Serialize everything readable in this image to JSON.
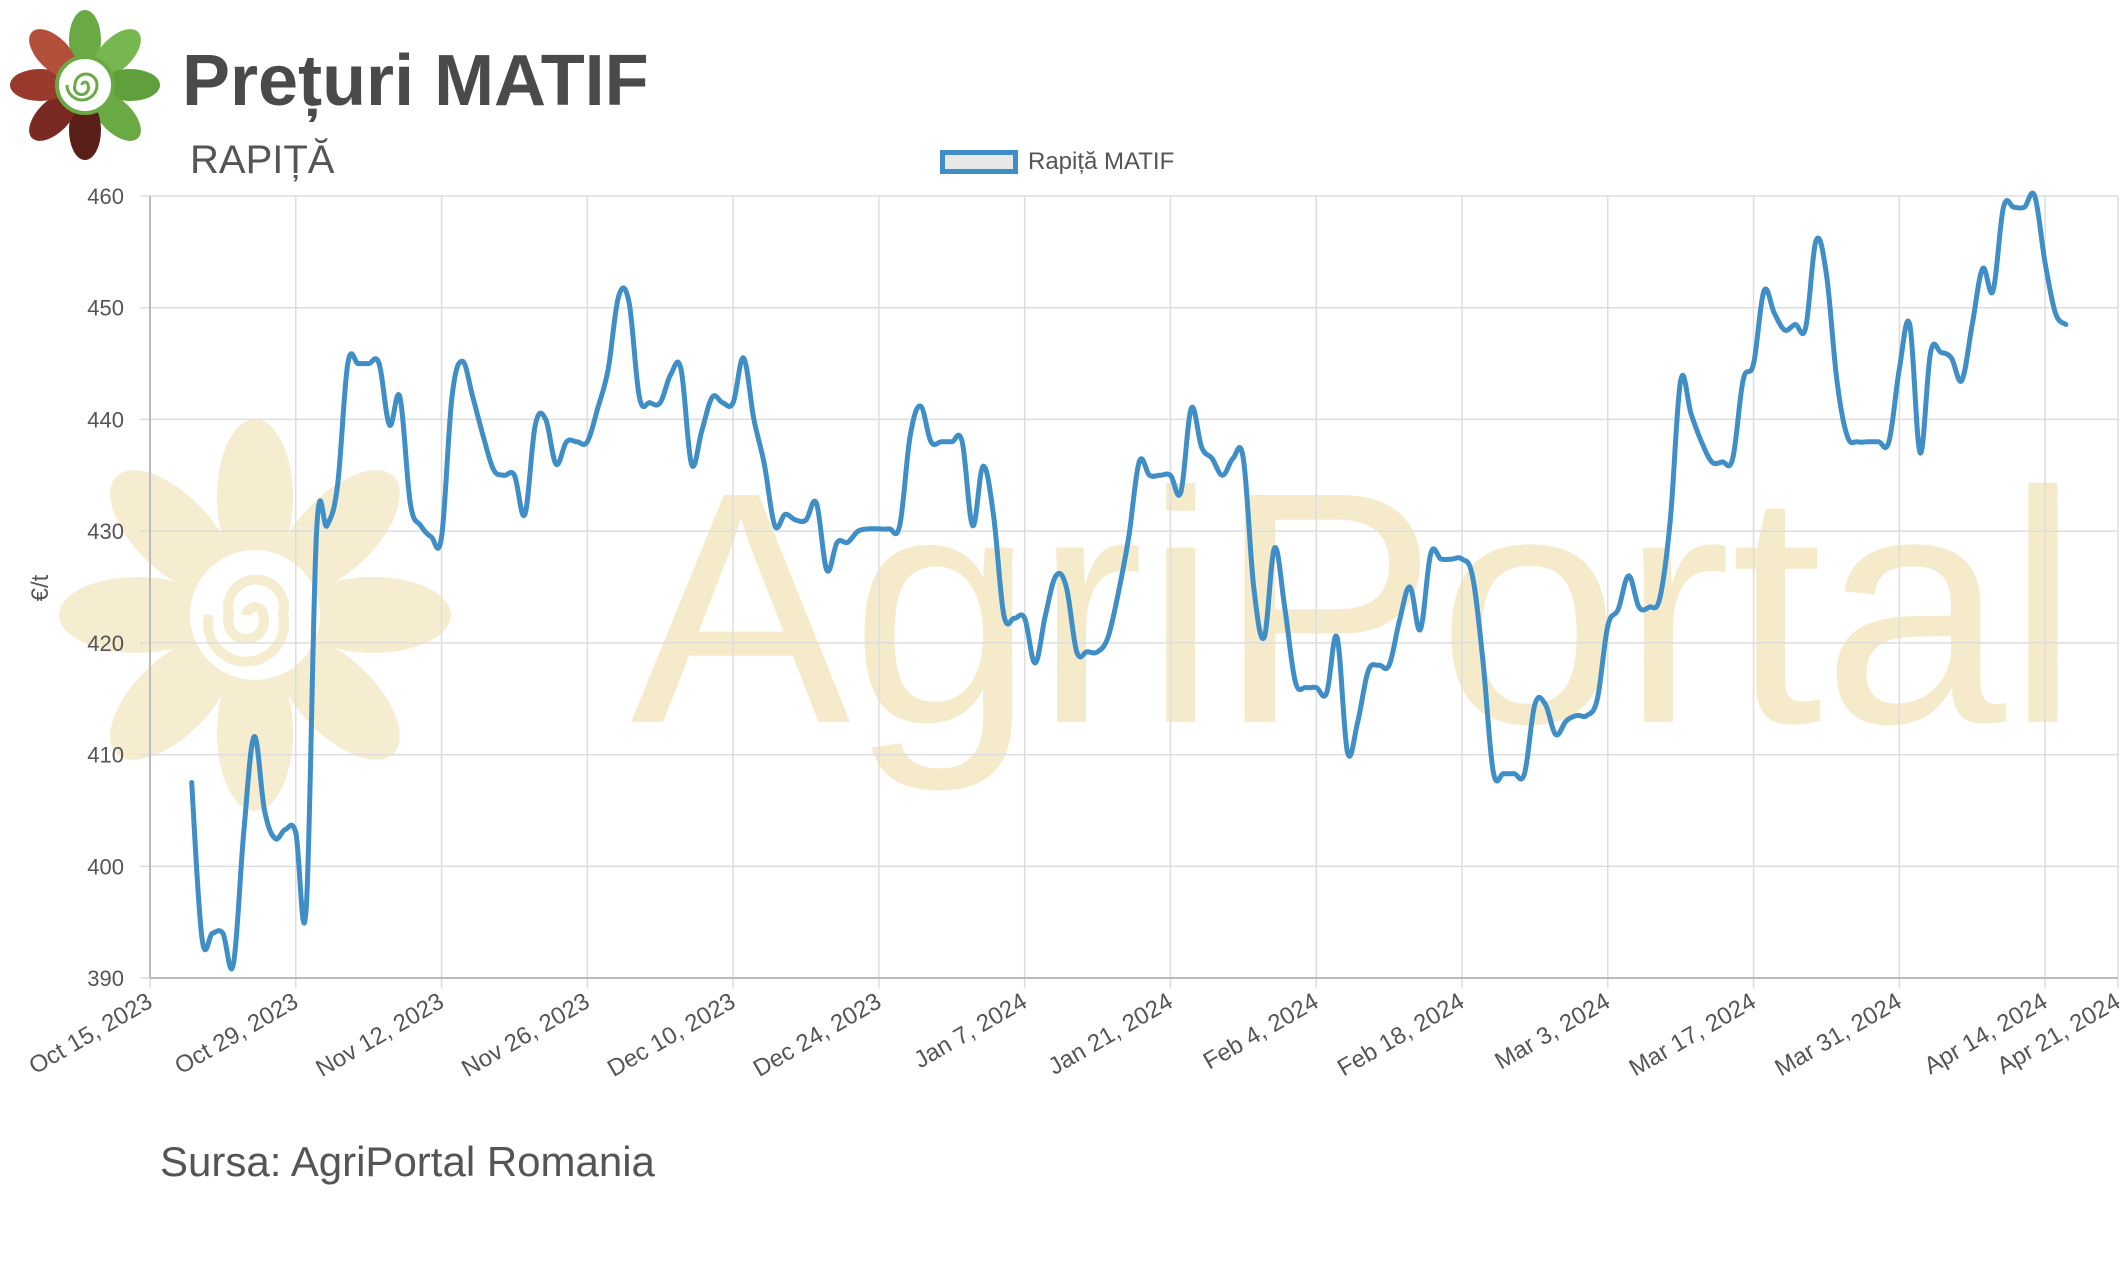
{
  "header": {
    "title": "Prețuri MATIF",
    "subtitle": "RAPIȚĂ"
  },
  "footer": {
    "source": "Sursa: AgriPortal Romania"
  },
  "watermark": {
    "text": "AgriPortal"
  },
  "colors": {
    "series": "#3f8ec6",
    "watermark": "#f3e6bf",
    "grid": "#dddddd"
  },
  "chart_data": {
    "type": "line",
    "title": "",
    "subtitle": "RAPIȚĂ",
    "xlabel": "",
    "ylabel": "€/t",
    "ylim": [
      390,
      460
    ],
    "xlim": [
      "2023-10-15",
      "2024-04-21"
    ],
    "yticks": [
      390,
      400,
      410,
      420,
      430,
      440,
      450,
      460
    ],
    "xticks": [
      "Oct 15, 2023",
      "Oct 29, 2023",
      "Nov 12, 2023",
      "Nov 26, 2023",
      "Dec 10, 2023",
      "Dec 24, 2023",
      "Jan 7, 2024",
      "Jan 21, 2024",
      "Feb 4, 2024",
      "Feb 18, 2024",
      "Mar 3, 2024",
      "Mar 17, 2024",
      "Mar 31, 2024",
      "Apr 14, 2024",
      "Apr 21, 2024"
    ],
    "grid": true,
    "legend": "top-center",
    "series": [
      {
        "name": "Rapiță MATIF",
        "color": "#3f8ec6",
        "points": [
          [
            "2023-10-19",
            407.5
          ],
          [
            "2023-10-20",
            393.5
          ],
          [
            "2023-10-21",
            394
          ],
          [
            "2023-10-22",
            394
          ],
          [
            "2023-10-23",
            391.2
          ],
          [
            "2023-10-24",
            403
          ],
          [
            "2023-10-25",
            411.6
          ],
          [
            "2023-10-26",
            405
          ],
          [
            "2023-10-27",
            402.5
          ],
          [
            "2023-10-28",
            403.3
          ],
          [
            "2023-10-29",
            403
          ],
          [
            "2023-10-30",
            396.2
          ],
          [
            "2023-10-31",
            430
          ],
          [
            "2023-11-01",
            430.5
          ],
          [
            "2023-11-02",
            434
          ],
          [
            "2023-11-03",
            445
          ],
          [
            "2023-11-04",
            445
          ],
          [
            "2023-11-05",
            445
          ],
          [
            "2023-11-06",
            445
          ],
          [
            "2023-11-07",
            439.5
          ],
          [
            "2023-11-08",
            442
          ],
          [
            "2023-11-09",
            432.5
          ],
          [
            "2023-11-10",
            430.5
          ],
          [
            "2023-11-11",
            429.5
          ],
          [
            "2023-11-12",
            429.5
          ],
          [
            "2023-11-13",
            442
          ],
          [
            "2023-11-14",
            445.2
          ],
          [
            "2023-11-15",
            442
          ],
          [
            "2023-11-16",
            438.5
          ],
          [
            "2023-11-17",
            435.5
          ],
          [
            "2023-11-18",
            435
          ],
          [
            "2023-11-19",
            435
          ],
          [
            "2023-11-20",
            431.5
          ],
          [
            "2023-11-21",
            439.5
          ],
          [
            "2023-11-22",
            440
          ],
          [
            "2023-11-23",
            436
          ],
          [
            "2023-11-24",
            438
          ],
          [
            "2023-11-25",
            438
          ],
          [
            "2023-11-26",
            438
          ],
          [
            "2023-11-27",
            441
          ],
          [
            "2023-11-28",
            444.5
          ],
          [
            "2023-11-29",
            451
          ],
          [
            "2023-11-30",
            450.5
          ],
          [
            "2023-12-01",
            442
          ],
          [
            "2023-12-02",
            441.5
          ],
          [
            "2023-12-03",
            441.5
          ],
          [
            "2023-12-04",
            444
          ],
          [
            "2023-12-05",
            444.5
          ],
          [
            "2023-12-06",
            436
          ],
          [
            "2023-12-07",
            439
          ],
          [
            "2023-12-08",
            442
          ],
          [
            "2023-12-09",
            441.5
          ],
          [
            "2023-12-10",
            441.5
          ],
          [
            "2023-12-11",
            445.5
          ],
          [
            "2023-12-12",
            440
          ],
          [
            "2023-12-13",
            436
          ],
          [
            "2023-12-14",
            430.5
          ],
          [
            "2023-12-15",
            431.5
          ],
          [
            "2023-12-16",
            431
          ],
          [
            "2023-12-17",
            431
          ],
          [
            "2023-12-18",
            432.5
          ],
          [
            "2023-12-19",
            426.5
          ],
          [
            "2023-12-20",
            429
          ],
          [
            "2023-12-21",
            429
          ],
          [
            "2023-12-22",
            430
          ],
          [
            "2023-12-23",
            430.2
          ],
          [
            "2023-12-24",
            430.2
          ],
          [
            "2023-12-25",
            430.2
          ],
          [
            "2023-12-26",
            430.5
          ],
          [
            "2023-12-27",
            438.5
          ],
          [
            "2023-12-28",
            441.2
          ],
          [
            "2023-12-29",
            438
          ],
          [
            "2023-12-30",
            438
          ],
          [
            "2023-12-31",
            438
          ],
          [
            "2024-01-01",
            438
          ],
          [
            "2024-01-02",
            430.5
          ],
          [
            "2024-01-03",
            435.8
          ],
          [
            "2024-01-04",
            431.5
          ],
          [
            "2024-01-05",
            422.5
          ],
          [
            "2024-01-06",
            422.2
          ],
          [
            "2024-01-07",
            422.2
          ],
          [
            "2024-01-08",
            418.2
          ],
          [
            "2024-01-09",
            422.5
          ],
          [
            "2024-01-10",
            426
          ],
          [
            "2024-01-11",
            425
          ],
          [
            "2024-01-12",
            419.2
          ],
          [
            "2024-01-13",
            419.2
          ],
          [
            "2024-01-14",
            419.2
          ],
          [
            "2024-01-15",
            420.5
          ],
          [
            "2024-01-16",
            424.5
          ],
          [
            "2024-01-17",
            429.5
          ],
          [
            "2024-01-18",
            436.2
          ],
          [
            "2024-01-19",
            435
          ],
          [
            "2024-01-20",
            435
          ],
          [
            "2024-01-21",
            435
          ],
          [
            "2024-01-22",
            433.5
          ],
          [
            "2024-01-23",
            441
          ],
          [
            "2024-01-24",
            437.5
          ],
          [
            "2024-01-25",
            436.5
          ],
          [
            "2024-01-26",
            435
          ],
          [
            "2024-01-27",
            436.5
          ],
          [
            "2024-01-28",
            436.5
          ],
          [
            "2024-01-29",
            425
          ],
          [
            "2024-01-30",
            420.5
          ],
          [
            "2024-01-31",
            428.5
          ],
          [
            "2024-02-01",
            423
          ],
          [
            "2024-02-02",
            416.5
          ],
          [
            "2024-02-03",
            416
          ],
          [
            "2024-02-04",
            416
          ],
          [
            "2024-02-05",
            415.5
          ],
          [
            "2024-02-06",
            420.5
          ],
          [
            "2024-02-07",
            410.2
          ],
          [
            "2024-02-08",
            413
          ],
          [
            "2024-02-09",
            417.5
          ],
          [
            "2024-02-10",
            418
          ],
          [
            "2024-02-11",
            418
          ],
          [
            "2024-02-12",
            422
          ],
          [
            "2024-02-13",
            425
          ],
          [
            "2024-02-14",
            421.2
          ],
          [
            "2024-02-15",
            428
          ],
          [
            "2024-02-16",
            427.5
          ],
          [
            "2024-02-17",
            427.5
          ],
          [
            "2024-02-18",
            427.5
          ],
          [
            "2024-02-19",
            426
          ],
          [
            "2024-02-20",
            418.5
          ],
          [
            "2024-02-21",
            408.5
          ],
          [
            "2024-02-22",
            408.3
          ],
          [
            "2024-02-23",
            408.3
          ],
          [
            "2024-02-24",
            408.3
          ],
          [
            "2024-02-25",
            414.5
          ],
          [
            "2024-02-26",
            414.5
          ],
          [
            "2024-02-27",
            411.8
          ],
          [
            "2024-02-28",
            413
          ],
          [
            "2024-02-29",
            413.5
          ],
          [
            "2024-03-01",
            413.5
          ],
          [
            "2024-03-02",
            415
          ],
          [
            "2024-03-03",
            421.5
          ],
          [
            "2024-03-04",
            423
          ],
          [
            "2024-03-05",
            426
          ],
          [
            "2024-03-06",
            423.2
          ],
          [
            "2024-03-07",
            423.2
          ],
          [
            "2024-03-08",
            424
          ],
          [
            "2024-03-09",
            431
          ],
          [
            "2024-03-10",
            443.5
          ],
          [
            "2024-03-11",
            440.5
          ],
          [
            "2024-03-12",
            438
          ],
          [
            "2024-03-13",
            436.2
          ],
          [
            "2024-03-14",
            436.2
          ],
          [
            "2024-03-15",
            436.5
          ],
          [
            "2024-03-16",
            443.5
          ],
          [
            "2024-03-17",
            445
          ],
          [
            "2024-03-18",
            451.5
          ],
          [
            "2024-03-19",
            449.5
          ],
          [
            "2024-03-20",
            448
          ],
          [
            "2024-03-21",
            448.5
          ],
          [
            "2024-03-22",
            448.2
          ],
          [
            "2024-03-23",
            456
          ],
          [
            "2024-03-24",
            453
          ],
          [
            "2024-03-25",
            443.5
          ],
          [
            "2024-03-26",
            438.5
          ],
          [
            "2024-03-27",
            438
          ],
          [
            "2024-03-28",
            438
          ],
          [
            "2024-03-29",
            438
          ],
          [
            "2024-03-30",
            438
          ],
          [
            "2024-03-31",
            444.5
          ],
          [
            "2024-04-01",
            448.5
          ],
          [
            "2024-04-02",
            437
          ],
          [
            "2024-04-03",
            446
          ],
          [
            "2024-04-04",
            446
          ],
          [
            "2024-04-05",
            445.5
          ],
          [
            "2024-04-06",
            443.5
          ],
          [
            "2024-04-07",
            448.5
          ],
          [
            "2024-04-08",
            453.5
          ],
          [
            "2024-04-09",
            451.5
          ],
          [
            "2024-04-10",
            459
          ],
          [
            "2024-04-11",
            459
          ],
          [
            "2024-04-12",
            459
          ],
          [
            "2024-04-13",
            460
          ],
          [
            "2024-04-14",
            454
          ],
          [
            "2024-04-15",
            449.5
          ],
          [
            "2024-04-16",
            448.5
          ]
        ]
      }
    ]
  }
}
